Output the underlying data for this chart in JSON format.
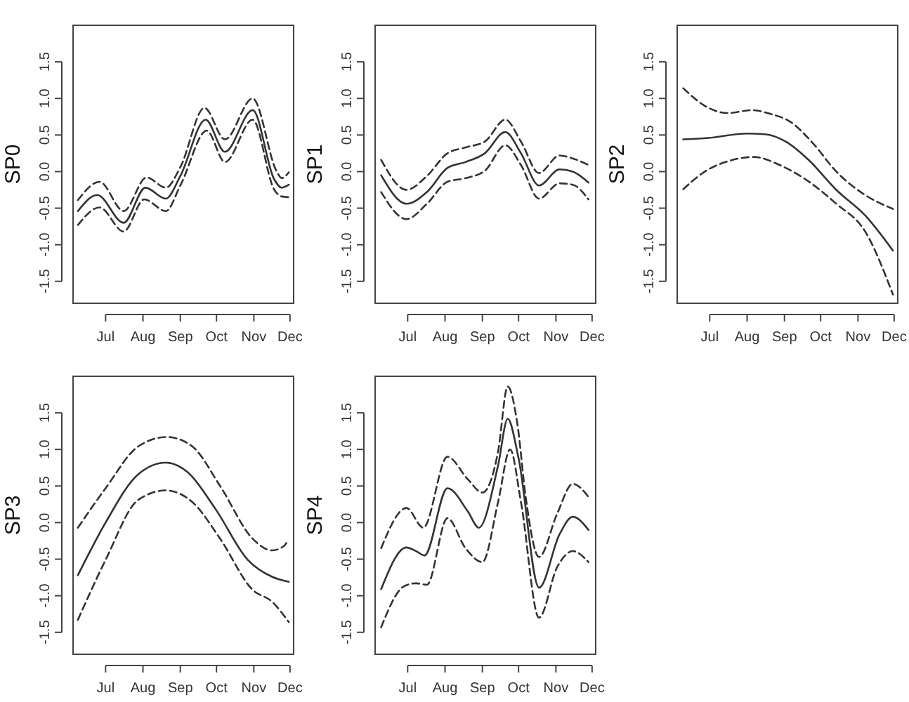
{
  "chart_data": [
    {
      "type": "line",
      "ylabel": "SP0",
      "xlim": [
        "--06-04",
        "--12-04"
      ],
      "ylim": [
        -1.8,
        2.0
      ],
      "xticks": [
        {
          "value": "--07-01",
          "label": "Jul"
        },
        {
          "value": "--08-01",
          "label": "Aug"
        },
        {
          "value": "--09-01",
          "label": "Sep"
        },
        {
          "value": "--10-01",
          "label": "Oct"
        },
        {
          "value": "--11-01",
          "label": "Nov"
        },
        {
          "value": "--12-01",
          "label": "Dec"
        }
      ],
      "yticks": [
        -1.5,
        {
          "value": -1,
          "label": "-1.0"
        },
        -0.5,
        {
          "value": 0,
          "label": "0.0"
        },
        0.5,
        {
          "value": 1,
          "label": "1.0"
        },
        1.5
      ],
      "series": [
        {
          "color": "#333333",
          "line_style": "solid",
          "x": [
            "--06-08",
            "--06-24",
            "--07-16",
            "--08-03",
            "--08-20",
            "--09-01",
            "--09-22",
            "--10-08",
            "--10-31",
            "--11-18",
            "--11-24",
            "--11-30"
          ],
          "values": [
            -0.54,
            -0.32,
            -0.7,
            -0.22,
            -0.37,
            -0.06,
            0.71,
            0.27,
            0.84,
            -0.11,
            -0.22,
            -0.18
          ]
        },
        {
          "color": "#333333",
          "line_style": "dashed",
          "x": [
            "--06-08",
            "--06-26",
            "--07-16",
            "--08-04",
            "--08-20",
            "--09-01",
            "--09-21",
            "--10-08",
            "--10-31",
            "--11-20",
            "--11-24",
            "--11-30"
          ],
          "values": [
            -0.39,
            -0.14,
            -0.54,
            -0.08,
            -0.22,
            0.06,
            0.87,
            0.44,
            1.0,
            0.0,
            -0.09,
            -0.01
          ]
        },
        {
          "color": "#333333",
          "line_style": "dashed",
          "x": [
            "--06-08",
            "--06-26",
            "--07-16",
            "--08-02",
            "--08-20",
            "--09-01",
            "--09-23",
            "--10-08",
            "--10-31",
            "--11-18",
            "--11-24",
            "--11-30"
          ],
          "values": [
            -0.73,
            -0.49,
            -0.82,
            -0.38,
            -0.54,
            -0.19,
            0.56,
            0.13,
            0.71,
            -0.25,
            -0.34,
            -0.35
          ]
        }
      ]
    },
    {
      "type": "line",
      "ylabel": "SP1",
      "xlim": [
        "--06-04",
        "--12-04"
      ],
      "ylim": [
        -1.8,
        2.0
      ],
      "xticks": [
        {
          "value": "--07-01",
          "label": "Jul"
        },
        {
          "value": "--08-01",
          "label": "Aug"
        },
        {
          "value": "--09-01",
          "label": "Sep"
        },
        {
          "value": "--10-01",
          "label": "Oct"
        },
        {
          "value": "--11-01",
          "label": "Nov"
        },
        {
          "value": "--12-01",
          "label": "Dec"
        }
      ],
      "yticks": [
        -1.5,
        {
          "value": -1,
          "label": "-1.0"
        },
        -0.5,
        {
          "value": 0,
          "label": "0.0"
        },
        0.5,
        {
          "value": 1,
          "label": "1.0"
        },
        1.5
      ],
      "series": [
        {
          "color": "#333333",
          "line_style": "solid",
          "x": [
            "--06-09",
            "--06-30",
            "--07-17",
            "--08-03",
            "--08-18",
            "--09-03",
            "--09-20",
            "--10-03",
            "--10-18",
            "--11-04",
            "--11-15",
            "--11-28"
          ],
          "values": [
            -0.05,
            -0.44,
            -0.28,
            0.05,
            0.13,
            0.25,
            0.54,
            0.25,
            -0.19,
            0.03,
            0.0,
            -0.15
          ]
        },
        {
          "color": "#333333",
          "line_style": "dashed",
          "x": [
            "--06-09",
            "--06-30",
            "--07-17",
            "--08-03",
            "--08-18",
            "--09-03",
            "--09-20",
            "--10-03",
            "--10-18",
            "--11-04",
            "--11-13",
            "--11-28"
          ],
          "values": [
            0.16,
            -0.25,
            -0.06,
            0.25,
            0.33,
            0.41,
            0.71,
            0.41,
            -0.02,
            0.22,
            0.19,
            0.09
          ]
        },
        {
          "color": "#333333",
          "line_style": "dashed",
          "x": [
            "--06-09",
            "--06-30",
            "--07-17",
            "--08-03",
            "--08-18",
            "--09-03",
            "--09-20",
            "--10-03",
            "--10-18",
            "--11-04",
            "--11-15",
            "--11-28"
          ],
          "values": [
            -0.28,
            -0.65,
            -0.44,
            -0.14,
            -0.09,
            0.01,
            0.36,
            0.09,
            -0.37,
            -0.16,
            -0.18,
            -0.38
          ]
        }
      ]
    },
    {
      "type": "line",
      "ylabel": "SP2",
      "xlim": [
        "--06-04",
        "--12-04"
      ],
      "ylim": [
        -1.8,
        2.0
      ],
      "xticks": [
        {
          "value": "--07-01",
          "label": "Jul"
        },
        {
          "value": "--08-01",
          "label": "Aug"
        },
        {
          "value": "--09-01",
          "label": "Sep"
        },
        {
          "value": "--10-01",
          "label": "Oct"
        },
        {
          "value": "--11-01",
          "label": "Nov"
        },
        {
          "value": "--12-01",
          "label": "Dec"
        }
      ],
      "yticks": [
        -1.5,
        {
          "value": -1,
          "label": "-1.0"
        },
        -0.5,
        {
          "value": 0,
          "label": "0.0"
        },
        0.5,
        {
          "value": 1,
          "label": "1.0"
        },
        1.5
      ],
      "series": [
        {
          "color": "#333333",
          "line_style": "solid",
          "x": [
            "--06-09",
            "--06-30",
            "--08-01",
            "--08-16",
            "--09-02",
            "--09-21",
            "--10-14",
            "--11-07",
            "--11-30"
          ],
          "values": [
            0.44,
            0.46,
            0.52,
            0.51,
            0.41,
            0.16,
            -0.25,
            -0.6,
            -1.08
          ]
        },
        {
          "color": "#333333",
          "line_style": "dashed",
          "x": [
            "--06-09",
            "--06-30",
            "--07-16",
            "--08-05",
            "--08-20",
            "--09-06",
            "--09-25",
            "--10-14",
            "--11-05",
            "--11-30"
          ],
          "values": [
            1.14,
            0.87,
            0.8,
            0.84,
            0.79,
            0.68,
            0.38,
            0.0,
            -0.3,
            -0.51
          ]
        },
        {
          "color": "#333333",
          "line_style": "dashed",
          "x": [
            "--06-09",
            "--06-27",
            "--07-20",
            "--08-07",
            "--08-28",
            "--09-17",
            "--10-14",
            "--11-07",
            "--11-30"
          ],
          "values": [
            -0.24,
            0.0,
            0.16,
            0.2,
            0.09,
            -0.09,
            -0.44,
            -0.82,
            -1.68
          ]
        }
      ]
    },
    {
      "type": "line",
      "ylabel": "SP3",
      "xlim": [
        "--06-04",
        "--12-04"
      ],
      "ylim": [
        -1.8,
        2.0
      ],
      "xticks": [
        {
          "value": "--07-01",
          "label": "Jul"
        },
        {
          "value": "--08-01",
          "label": "Aug"
        },
        {
          "value": "--09-01",
          "label": "Sep"
        },
        {
          "value": "--10-01",
          "label": "Oct"
        },
        {
          "value": "--11-01",
          "label": "Nov"
        },
        {
          "value": "--12-01",
          "label": "Dec"
        }
      ],
      "yticks": [
        -1.5,
        {
          "value": -1,
          "label": "-1.0"
        },
        -0.5,
        {
          "value": 0,
          "label": "0.0"
        },
        0.5,
        {
          "value": 1,
          "label": "1.0"
        },
        1.5
      ],
      "series": [
        {
          "color": "#333333",
          "line_style": "solid",
          "x": [
            "--06-08",
            "--07-01",
            "--07-28",
            "--08-20",
            "--09-07",
            "--09-30",
            "--10-27",
            "--11-16",
            "--11-30"
          ],
          "values": [
            -0.72,
            0.0,
            0.66,
            0.82,
            0.69,
            0.19,
            -0.51,
            -0.74,
            -0.81
          ]
        },
        {
          "color": "#333333",
          "line_style": "dashed",
          "x": [
            "--06-08",
            "--07-01",
            "--07-28",
            "--08-21",
            "--09-11",
            "--10-04",
            "--10-31",
            "--11-16",
            "--11-26",
            "--11-28"
          ],
          "values": [
            -0.07,
            0.47,
            1.04,
            1.17,
            1.04,
            0.5,
            -0.22,
            -0.38,
            -0.32,
            -0.28
          ]
        },
        {
          "color": "#333333",
          "line_style": "dashed",
          "x": [
            "--06-08",
            "--07-01",
            "--07-28",
            "--08-20",
            "--09-11",
            "--10-04",
            "--10-31",
            "--11-16",
            "--11-30"
          ],
          "values": [
            -1.33,
            -0.51,
            0.31,
            0.44,
            0.28,
            -0.22,
            -0.92,
            -1.08,
            -1.36
          ]
        }
      ]
    },
    {
      "type": "line",
      "ylabel": "SP4",
      "xlim": [
        "--06-04",
        "--12-04"
      ],
      "ylim": [
        -1.8,
        2.0
      ],
      "xticks": [
        {
          "value": "--07-01",
          "label": "Jul"
        },
        {
          "value": "--08-01",
          "label": "Aug"
        },
        {
          "value": "--09-01",
          "label": "Sep"
        },
        {
          "value": "--10-01",
          "label": "Oct"
        },
        {
          "value": "--11-01",
          "label": "Nov"
        },
        {
          "value": "--12-01",
          "label": "Dec"
        }
      ],
      "yticks": [
        -1.5,
        {
          "value": -1,
          "label": "-1.0"
        },
        -0.5,
        {
          "value": 0,
          "label": "0.0"
        },
        0.5,
        {
          "value": 1,
          "label": "1.0"
        },
        1.5
      ],
      "series": [
        {
          "color": "#333333",
          "line_style": "solid",
          "x": [
            "--06-09",
            "--06-30",
            "--07-08",
            "--07-15",
            "--08-03",
            "--08-20",
            "--08-29",
            "--09-14",
            "--09-22",
            "--10-01",
            "--10-18",
            "--11-04",
            "--11-15",
            "--11-28"
          ],
          "values": [
            -0.91,
            -0.34,
            -0.39,
            -0.45,
            0.47,
            0.15,
            -0.07,
            0.78,
            1.42,
            0.88,
            -0.89,
            -0.16,
            0.08,
            -0.1
          ]
        },
        {
          "color": "#333333",
          "line_style": "dashed",
          "x": [
            "--06-09",
            "--06-30",
            "--07-14",
            "--08-03",
            "--08-20",
            "--09-01",
            "--09-14",
            "--09-22",
            "--09-30",
            "--10-07",
            "--10-18",
            "--11-02",
            "--11-15",
            "--11-28"
          ],
          "values": [
            -0.35,
            0.2,
            -0.07,
            0.9,
            0.59,
            0.41,
            0.97,
            1.86,
            1.35,
            0.34,
            -0.47,
            0.12,
            0.53,
            0.35
          ]
        },
        {
          "color": "#333333",
          "line_style": "dashed",
          "x": [
            "--06-09",
            "--06-28",
            "--07-08",
            "--07-17",
            "--08-03",
            "--08-18",
            "--09-01",
            "--09-14",
            "--09-24",
            "--10-03",
            "--10-18",
            "--11-02",
            "--11-15",
            "--11-28"
          ],
          "values": [
            -1.43,
            -0.87,
            -0.83,
            -0.85,
            0.06,
            -0.35,
            -0.54,
            0.28,
            1.0,
            0.28,
            -1.3,
            -0.61,
            -0.39,
            -0.54
          ]
        }
      ]
    }
  ]
}
